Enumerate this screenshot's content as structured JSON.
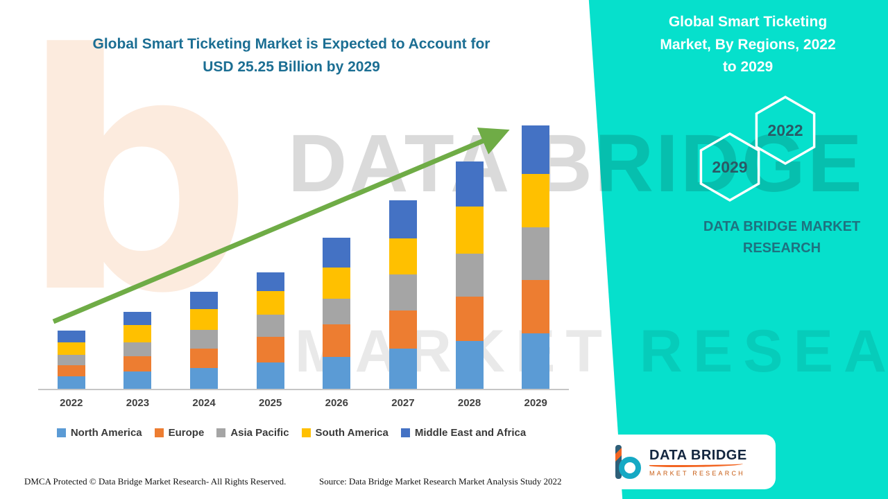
{
  "page": {
    "title_line1": "Global Smart Ticketing Market is Expected to Account for",
    "title_line2": "USD 25.25 Billion by 2029"
  },
  "side_panel": {
    "title": "Global Smart Ticketing Market, By Regions, 2022 to 2029",
    "badge_back": "2029",
    "badge_front": "2022",
    "brand_line1": "DATA BRIDGE MARKET",
    "brand_line2": "RESEARCH",
    "background": "#06E0CC"
  },
  "logo": {
    "name": "DATA BRIDGE",
    "tagline": "MARKET RESEARCH"
  },
  "watermark": {
    "mark": "b",
    "line1": "DATA BRIDGE",
    "line2": "MARKET RESEARCH"
  },
  "footer": {
    "dmca": "DMCA Protected © Data Bridge Market Research- All Rights Reserved.",
    "source": "Source: Data Bridge Market Research Market Analysis Study 2022"
  },
  "chart_data": {
    "type": "bar",
    "stacked": true,
    "title": "Global Smart Ticketing Market, By Regions, 2022 to 2029",
    "subtitle": "Global Smart Ticketing Market is Expected to Account for USD 25.25 Billion by 2029",
    "categories": [
      "2022",
      "2023",
      "2024",
      "2025",
      "2026",
      "2027",
      "2028",
      "2029"
    ],
    "series": [
      {
        "name": "North America",
        "color": "#5B9BD5",
        "values": [
          1.2,
          1.65,
          2.0,
          2.5,
          3.05,
          3.85,
          4.6,
          5.3
        ]
      },
      {
        "name": "Europe",
        "color": "#ED7D31",
        "values": [
          1.05,
          1.5,
          1.85,
          2.5,
          3.1,
          3.65,
          4.25,
          5.1
        ]
      },
      {
        "name": "Asia Pacific",
        "color": "#A5A5A5",
        "values": [
          1.0,
          1.3,
          1.8,
          2.1,
          2.5,
          3.45,
          4.1,
          5.1
        ]
      },
      {
        "name": "South America",
        "color": "#FFC000",
        "values": [
          1.2,
          1.65,
          2.0,
          2.3,
          3.0,
          3.5,
          4.5,
          5.1
        ]
      },
      {
        "name": "Middle East and Africa",
        "color": "#4472C4",
        "values": [
          1.15,
          1.3,
          1.65,
          1.8,
          2.85,
          3.65,
          4.35,
          4.65
        ]
      }
    ],
    "totals": [
      5.6,
      7.4,
      9.3,
      11.2,
      14.5,
      18.1,
      21.8,
      25.25
    ],
    "units": "USD Billion",
    "ylim": [
      0,
      26
    ],
    "axes_visible": false,
    "gridlines": false,
    "legend_position": "bottom",
    "trend_arrow": true,
    "arrow_color": "#6FAC46"
  }
}
